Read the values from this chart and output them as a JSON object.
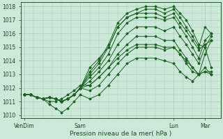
{
  "xlabel": "Pression niveau de la mer( hPa )",
  "ylim": [
    1009.8,
    1018.3
  ],
  "yticks": [
    1010,
    1011,
    1012,
    1013,
    1014,
    1015,
    1016,
    1017,
    1018
  ],
  "xtick_labels": [
    "VenDim",
    "Sam",
    "Lun",
    "Mar"
  ],
  "xtick_positions": [
    0,
    36,
    96,
    116
  ],
  "xlim": [
    -2,
    126
  ],
  "bg_color": "#cce8d8",
  "grid_color": "#a8ccb8",
  "line_color": "#1a6020",
  "series": [
    {
      "x": [
        0,
        4,
        8,
        12,
        16,
        20,
        24,
        28,
        32,
        36,
        42,
        48,
        54,
        60,
        66,
        72,
        78,
        84,
        90,
        96,
        100,
        104,
        108,
        112,
        116,
        120
      ],
      "y": [
        1011.5,
        1011.5,
        1011.3,
        1011.2,
        1011.3,
        1011.2,
        1011.0,
        1011.2,
        1011.5,
        1012.0,
        1013.5,
        1014.2,
        1015.0,
        1016.5,
        1017.2,
        1017.5,
        1017.8,
        1017.8,
        1017.5,
        1017.8,
        1017.2,
        1016.5,
        1015.8,
        1015.0,
        1016.5,
        1016.0
      ]
    },
    {
      "x": [
        0,
        4,
        8,
        12,
        16,
        20,
        24,
        28,
        32,
        36,
        42,
        48,
        54,
        60,
        66,
        72,
        78,
        84,
        90,
        96,
        100,
        104,
        108,
        112,
        116,
        120
      ],
      "y": [
        1011.5,
        1011.5,
        1011.3,
        1011.2,
        1011.3,
        1011.2,
        1011.0,
        1011.2,
        1011.5,
        1012.0,
        1013.2,
        1014.0,
        1015.2,
        1016.8,
        1017.5,
        1017.8,
        1018.0,
        1018.0,
        1017.8,
        1018.0,
        1017.5,
        1017.0,
        1016.2,
        1015.2,
        1015.0,
        1013.5
      ]
    },
    {
      "x": [
        0,
        4,
        8,
        12,
        16,
        20,
        24,
        28,
        32,
        36,
        42,
        48,
        54,
        60,
        66,
        72,
        78,
        84,
        90,
        96,
        100,
        104,
        108,
        112,
        116,
        120
      ],
      "y": [
        1011.5,
        1011.5,
        1011.3,
        1011.2,
        1011.3,
        1011.2,
        1011.0,
        1011.2,
        1011.5,
        1012.0,
        1013.0,
        1013.8,
        1015.0,
        1016.5,
        1017.2,
        1017.5,
        1017.5,
        1017.5,
        1017.2,
        1017.5,
        1016.8,
        1016.2,
        1015.5,
        1014.8,
        1015.2,
        1015.5
      ]
    },
    {
      "x": [
        0,
        4,
        8,
        12,
        16,
        20,
        24,
        28,
        32,
        36,
        42,
        48,
        54,
        60,
        66,
        72,
        78,
        84,
        90,
        96,
        100,
        104,
        108,
        112,
        116,
        120
      ],
      "y": [
        1011.5,
        1011.5,
        1011.3,
        1011.2,
        1011.3,
        1011.2,
        1011.0,
        1011.2,
        1011.5,
        1012.0,
        1012.8,
        1013.5,
        1014.5,
        1016.0,
        1016.8,
        1017.2,
        1017.2,
        1017.2,
        1017.0,
        1017.2,
        1016.5,
        1015.8,
        1015.0,
        1014.2,
        1015.5,
        1016.0
      ]
    },
    {
      "x": [
        0,
        4,
        8,
        12,
        16,
        20,
        24,
        28,
        32,
        36,
        42,
        48,
        54,
        60,
        66,
        72,
        78,
        84,
        90,
        96,
        100,
        104,
        108,
        112,
        116,
        120
      ],
      "y": [
        1011.5,
        1011.5,
        1011.3,
        1011.2,
        1011.3,
        1011.2,
        1011.0,
        1011.2,
        1011.5,
        1012.0,
        1012.5,
        1013.2,
        1014.0,
        1015.2,
        1016.0,
        1016.5,
        1016.5,
        1016.5,
        1016.2,
        1016.5,
        1015.8,
        1015.2,
        1014.5,
        1013.8,
        1015.0,
        1015.8
      ]
    },
    {
      "x": [
        0,
        4,
        8,
        12,
        16,
        20,
        24,
        28,
        32,
        36,
        42,
        48,
        54,
        60,
        66,
        72,
        78,
        84,
        90,
        96,
        100,
        104,
        108,
        112,
        116,
        120
      ],
      "y": [
        1011.5,
        1011.5,
        1011.3,
        1011.2,
        1011.3,
        1011.2,
        1011.0,
        1011.2,
        1011.5,
        1012.0,
        1012.2,
        1012.8,
        1013.5,
        1014.5,
        1015.2,
        1015.8,
        1015.8,
        1015.8,
        1015.5,
        1015.5,
        1014.8,
        1014.2,
        1013.5,
        1013.0,
        1014.5,
        1015.5
      ]
    },
    {
      "x": [
        0,
        4,
        8,
        12,
        16,
        20,
        24,
        28,
        32,
        36,
        42,
        48,
        54,
        60,
        66,
        72,
        78,
        84,
        90,
        96,
        100,
        104,
        108,
        112,
        116,
        120
      ],
      "y": [
        1011.5,
        1011.5,
        1011.3,
        1011.2,
        1011.3,
        1011.2,
        1011.0,
        1011.2,
        1011.5,
        1012.0,
        1011.8,
        1012.2,
        1013.0,
        1013.8,
        1014.5,
        1015.0,
        1015.0,
        1015.0,
        1014.8,
        1015.0,
        1014.5,
        1013.8,
        1013.2,
        1013.0,
        1013.2,
        1013.2
      ]
    },
    {
      "x": [
        0,
        4,
        8,
        12,
        16,
        20,
        24,
        28,
        32,
        36,
        42,
        48,
        54,
        60,
        66,
        72,
        78,
        84,
        90,
        96,
        100,
        104,
        108,
        112,
        116,
        120
      ],
      "y": [
        1011.5,
        1011.5,
        1011.3,
        1011.2,
        1010.8,
        1010.5,
        1010.2,
        1010.5,
        1011.0,
        1011.5,
        1011.2,
        1011.5,
        1012.2,
        1013.0,
        1013.8,
        1014.2,
        1014.2,
        1014.2,
        1014.0,
        1013.8,
        1013.2,
        1012.8,
        1012.5,
        1013.0,
        1013.2,
        1013.0
      ]
    },
    {
      "x": [
        0,
        4,
        8,
        12,
        16,
        20,
        24,
        28,
        32,
        36,
        42,
        48,
        54,
        60,
        66,
        72,
        78,
        84,
        90,
        96,
        100,
        104,
        108,
        112,
        116,
        120
      ],
      "y": [
        1011.5,
        1011.5,
        1011.3,
        1011.2,
        1011.0,
        1011.0,
        1011.2,
        1011.5,
        1011.8,
        1012.2,
        1012.2,
        1012.8,
        1013.5,
        1014.2,
        1014.8,
        1015.2,
        1015.2,
        1015.2,
        1015.0,
        1015.0,
        1014.5,
        1014.0,
        1013.5,
        1013.0,
        1013.5,
        1013.0
      ]
    }
  ]
}
